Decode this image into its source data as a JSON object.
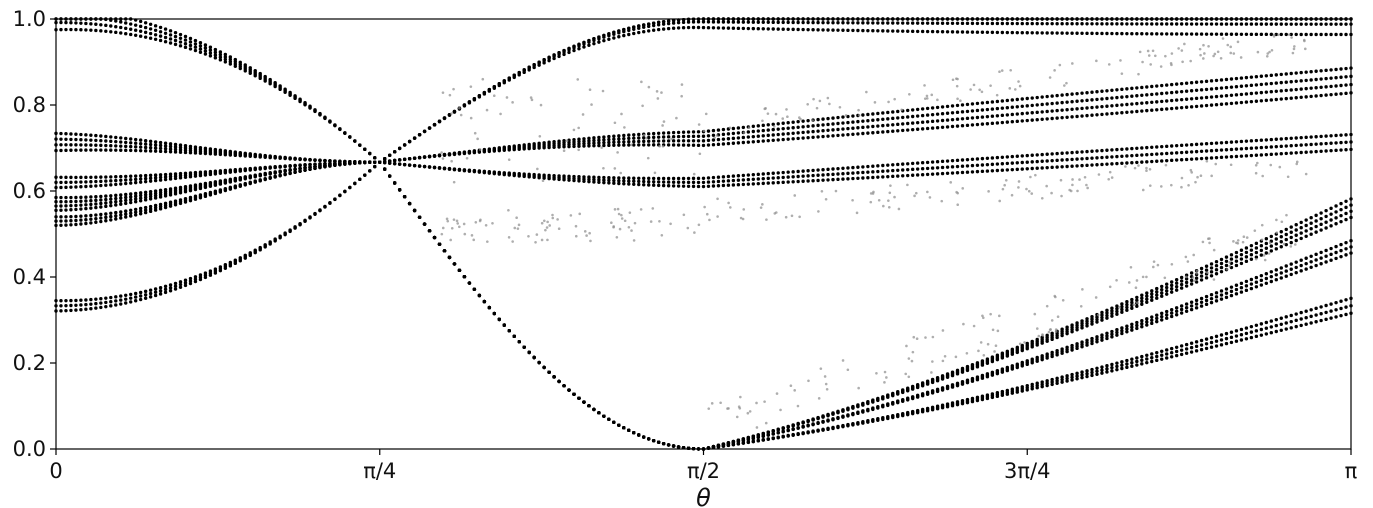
{
  "chart_data": {
    "type": "scatter",
    "title": "",
    "xlabel": "θ",
    "ylabel": "",
    "xlim": [
      0,
      3.14159265
    ],
    "ylim": [
      0,
      1
    ],
    "xticks": [
      {
        "value": 0,
        "label": "0"
      },
      {
        "value": 0.78539816,
        "label": "π/4"
      },
      {
        "value": 1.57079633,
        "label": "π/2"
      },
      {
        "value": 2.35619449,
        "label": "3π/4"
      },
      {
        "value": 3.14159265,
        "label": "π"
      }
    ],
    "yticks": [
      {
        "value": 0.0,
        "label": "0.0"
      },
      {
        "value": 0.2,
        "label": "0.2"
      },
      {
        "value": 0.4,
        "label": "0.4"
      },
      {
        "value": 0.6,
        "label": "0.6"
      },
      {
        "value": 0.8,
        "label": "0.8"
      },
      {
        "value": 1.0,
        "label": "1.0"
      }
    ],
    "grid": false,
    "legend": "none",
    "marker_color": "#000000",
    "faint_marker_color": "#8c8c8c",
    "crossing_point": {
      "x": 0.78539816,
      "y": 0.667
    },
    "curve_families": [
      {
        "start": 1.0,
        "cross": 0.667,
        "half_pi": 1.0,
        "end": 1.0,
        "strands": 4,
        "spread": 0.025
      },
      {
        "start": 0.714,
        "cross": 0.667,
        "half_pi": 0.722,
        "end": 0.857,
        "strands": 4,
        "spread": 0.02
      },
      {
        "start": 0.62,
        "cross": 0.667,
        "half_pi": 0.62,
        "end": 0.714,
        "strands": 3,
        "spread": 0.012
      },
      {
        "start": 0.57,
        "cross": 0.667,
        "half_pi": 0.0,
        "end": 0.56,
        "strands": 4,
        "spread": 0.015
      },
      {
        "start": 0.53,
        "cross": 0.667,
        "half_pi": 0.0,
        "end": 0.47,
        "strands": 3,
        "spread": 0.01
      },
      {
        "start": 0.333,
        "cross": 0.667,
        "half_pi": 0.0,
        "end": 0.333,
        "strands": 3,
        "spread": 0.012
      }
    ]
  }
}
